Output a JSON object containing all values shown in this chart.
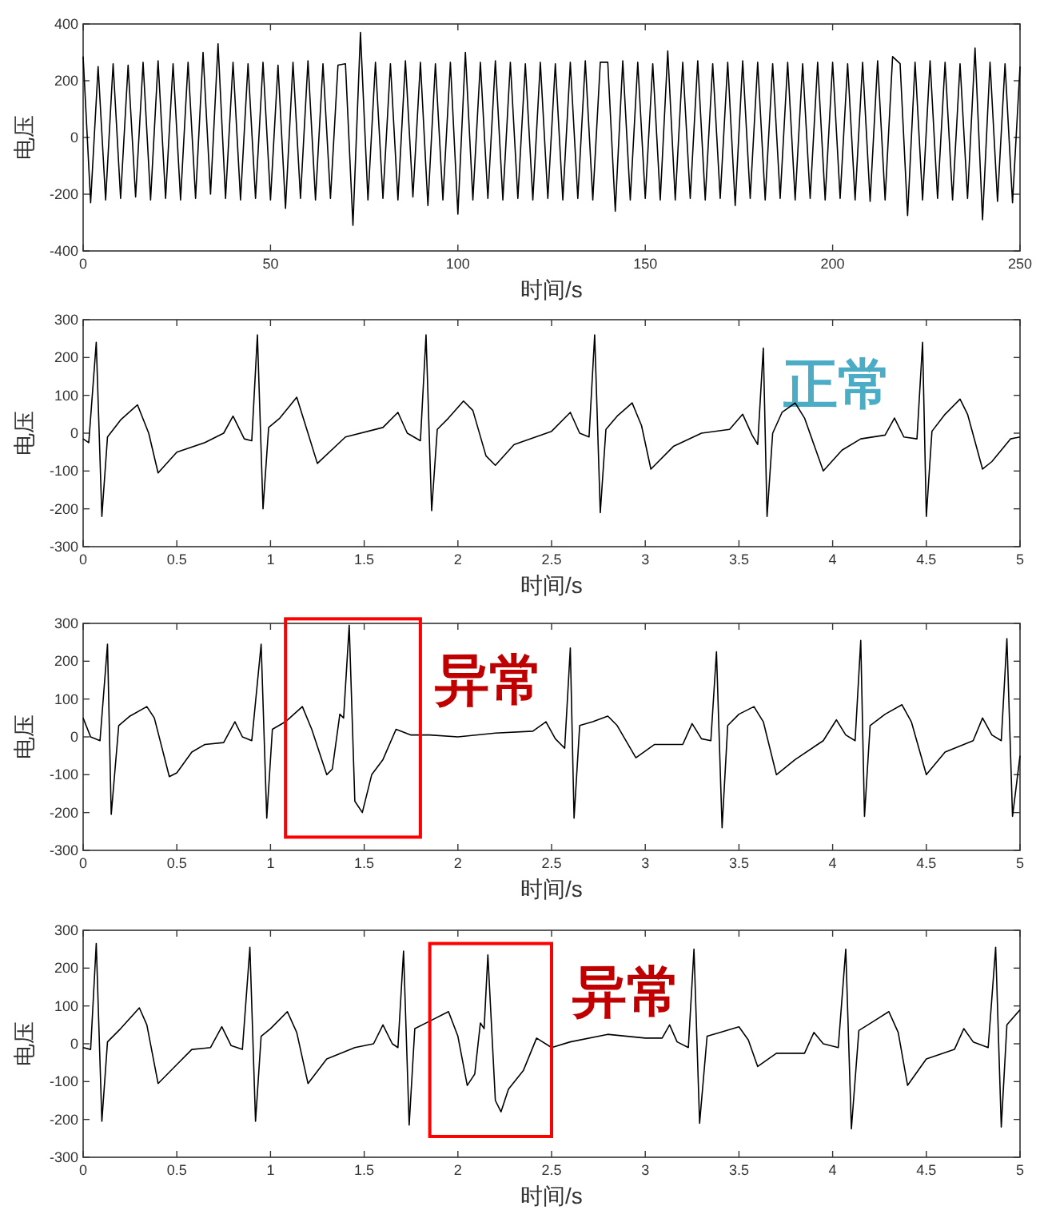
{
  "chart_data": [
    {
      "type": "line",
      "xlabel": "时间/s",
      "ylabel": "电压",
      "xlim": [
        0,
        250
      ],
      "xticks": [
        0,
        50,
        100,
        150,
        200,
        250
      ],
      "ylim": [
        -400,
        400
      ],
      "yticks": [
        -400,
        -200,
        0,
        200,
        400
      ],
      "grid": false,
      "marker": "none",
      "line_style": "solid",
      "x": [
        0,
        2,
        4,
        6,
        8,
        10,
        12,
        14,
        16,
        18,
        20,
        22,
        24,
        26,
        28,
        30,
        32,
        34,
        36,
        38,
        40,
        42,
        44,
        46,
        48,
        50,
        52,
        54,
        56,
        58,
        60,
        62,
        64,
        66,
        68,
        70,
        72,
        74,
        76,
        78,
        80,
        82,
        84,
        86,
        88,
        90,
        92,
        94,
        96,
        98,
        100,
        102,
        104,
        106,
        108,
        110,
        112,
        114,
        116,
        118,
        120,
        122,
        124,
        126,
        128,
        130,
        132,
        134,
        136,
        138,
        140,
        142,
        144,
        146,
        148,
        150,
        152,
        154,
        156,
        158,
        160,
        162,
        164,
        166,
        168,
        170,
        172,
        174,
        176,
        178,
        180,
        182,
        184,
        186,
        188,
        190,
        192,
        194,
        196,
        198,
        200,
        202,
        204,
        206,
        208,
        210,
        212,
        214,
        216,
        218,
        220,
        222,
        224,
        226,
        228,
        230,
        232,
        234,
        236,
        238,
        240,
        242,
        244,
        246,
        248,
        250
      ],
      "series": [
        {
          "color": "#000000",
          "values": [
            285,
            -230,
            250,
            -220,
            260,
            -215,
            255,
            -210,
            265,
            -220,
            270,
            -215,
            260,
            -220,
            265,
            -215,
            300,
            -200,
            330,
            -215,
            265,
            -220,
            260,
            -215,
            265,
            -220,
            255,
            -250,
            265,
            -215,
            270,
            -220,
            260,
            -215,
            255,
            260,
            -310,
            370,
            -220,
            265,
            -215,
            260,
            -220,
            270,
            -210,
            265,
            -240,
            260,
            -220,
            265,
            -270,
            300,
            -220,
            265,
            -215,
            270,
            -220,
            265,
            -215,
            260,
            -220,
            265,
            -215,
            260,
            -220,
            265,
            -215,
            270,
            -220,
            265,
            265,
            -260,
            270,
            -220,
            265,
            -215,
            260,
            -220,
            305,
            -220,
            265,
            -215,
            270,
            -220,
            260,
            -215,
            265,
            -240,
            270,
            -215,
            265,
            -220,
            260,
            -215,
            265,
            -220,
            260,
            -215,
            265,
            -220,
            265,
            -215,
            260,
            -220,
            265,
            -225,
            270,
            -220,
            285,
            260,
            -275,
            265,
            -220,
            270,
            -215,
            265,
            -220,
            260,
            -215,
            315,
            -290,
            265,
            -225,
            260,
            -230,
            250
          ]
        }
      ]
    },
    {
      "type": "line",
      "xlabel": "时间/s",
      "ylabel": "电压",
      "xlim": [
        0,
        5
      ],
      "xticks": [
        0,
        0.5,
        1,
        1.5,
        2,
        2.5,
        3,
        3.5,
        4,
        4.5,
        5
      ],
      "ylim": [
        -300,
        300
      ],
      "yticks": [
        -300,
        -200,
        -100,
        0,
        100,
        200,
        300
      ],
      "grid": false,
      "marker": "none",
      "line_style": "solid",
      "annotations": [
        "正常"
      ],
      "x": [
        0,
        0.03,
        0.07,
        0.1,
        0.13,
        0.2,
        0.29,
        0.35,
        0.4,
        0.5,
        0.65,
        0.75,
        0.8,
        0.86,
        0.9,
        0.93,
        0.96,
        0.99,
        1.05,
        1.14,
        1.2,
        1.25,
        1.4,
        1.6,
        1.68,
        1.73,
        1.8,
        1.83,
        1.86,
        1.89,
        1.95,
        2.03,
        2.08,
        2.15,
        2.2,
        2.3,
        2.5,
        2.6,
        2.65,
        2.7,
        2.73,
        2.76,
        2.79,
        2.85,
        2.93,
        2.98,
        3.03,
        3.15,
        3.3,
        3.45,
        3.52,
        3.57,
        3.6,
        3.63,
        3.65,
        3.68,
        3.73,
        3.8,
        3.85,
        3.95,
        4.05,
        4.15,
        4.28,
        4.33,
        4.38,
        4.45,
        4.48,
        4.5,
        4.53,
        4.6,
        4.68,
        4.72,
        4.8,
        4.85,
        4.95,
        5
      ],
      "series": [
        {
          "color": "#000000",
          "values": [
            -15,
            -25,
            240,
            -220,
            -10,
            35,
            75,
            0,
            -105,
            -50,
            -25,
            0,
            45,
            -15,
            -20,
            260,
            -200,
            15,
            40,
            95,
            0,
            -80,
            -10,
            15,
            55,
            0,
            -20,
            260,
            -205,
            10,
            40,
            85,
            60,
            -60,
            -85,
            -30,
            5,
            55,
            0,
            -10,
            260,
            -210,
            10,
            45,
            80,
            20,
            -95,
            -35,
            0,
            10,
            50,
            -5,
            -30,
            225,
            -220,
            0,
            55,
            80,
            40,
            -100,
            -45,
            -15,
            -5,
            40,
            -10,
            -15,
            240,
            -220,
            5,
            50,
            90,
            50,
            -95,
            -75,
            -15,
            -10
          ]
        }
      ]
    },
    {
      "type": "line",
      "xlabel": "时间/s",
      "ylabel": "电压",
      "xlim": [
        0,
        5
      ],
      "xticks": [
        0,
        0.5,
        1,
        1.5,
        2,
        2.5,
        3,
        3.5,
        4,
        4.5,
        5
      ],
      "ylim": [
        -300,
        300
      ],
      "yticks": [
        -300,
        -200,
        -100,
        0,
        100,
        200,
        300
      ],
      "grid": false,
      "marker": "none",
      "line_style": "solid",
      "annotations": [
        "异常"
      ],
      "x": [
        0,
        0.04,
        0.09,
        0.13,
        0.15,
        0.19,
        0.25,
        0.34,
        0.38,
        0.46,
        0.5,
        0.58,
        0.65,
        0.75,
        0.81,
        0.85,
        0.9,
        0.95,
        0.98,
        1.01,
        1.08,
        1.17,
        1.22,
        1.3,
        1.33,
        1.37,
        1.39,
        1.42,
        1.45,
        1.49,
        1.54,
        1.6,
        1.67,
        1.75,
        1.85,
        2,
        2.2,
        2.4,
        2.47,
        2.52,
        2.57,
        2.6,
        2.62,
        2.65,
        2.72,
        2.8,
        2.85,
        2.95,
        3.05,
        3.2,
        3.25,
        3.3,
        3.35,
        3.38,
        3.41,
        3.44,
        3.5,
        3.58,
        3.63,
        3.7,
        3.8,
        3.95,
        4.02,
        4.07,
        4.12,
        4.15,
        4.17,
        4.2,
        4.28,
        4.37,
        4.42,
        4.5,
        4.6,
        4.75,
        4.8,
        4.85,
        4.9,
        4.93,
        4.96,
        5
      ],
      "series": [
        {
          "color": "#000000",
          "values": [
            50,
            0,
            -10,
            245,
            -205,
            30,
            55,
            80,
            50,
            -105,
            -95,
            -40,
            -20,
            -15,
            40,
            0,
            -10,
            245,
            -215,
            20,
            40,
            80,
            20,
            -100,
            -85,
            60,
            50,
            295,
            -170,
            -200,
            -100,
            -60,
            20,
            5,
            5,
            0,
            10,
            15,
            40,
            -5,
            -30,
            235,
            -215,
            30,
            40,
            55,
            30,
            -55,
            -20,
            -20,
            35,
            -5,
            -10,
            225,
            -240,
            30,
            60,
            80,
            40,
            -100,
            -60,
            -10,
            45,
            5,
            -10,
            255,
            -210,
            30,
            60,
            85,
            40,
            -100,
            -40,
            -10,
            50,
            5,
            -10,
            260,
            -210,
            -50
          ]
        }
      ]
    },
    {
      "type": "line",
      "xlabel": "时间/s",
      "ylabel": "电压",
      "xlim": [
        0,
        5
      ],
      "xticks": [
        0,
        0.5,
        1,
        1.5,
        2,
        2.5,
        3,
        3.5,
        4,
        4.5,
        5
      ],
      "ylim": [
        -300,
        300
      ],
      "yticks": [
        -300,
        -200,
        -100,
        0,
        100,
        200,
        300
      ],
      "grid": false,
      "marker": "none",
      "line_style": "solid",
      "annotations": [
        "异常"
      ],
      "x": [
        0,
        0.04,
        0.07,
        0.1,
        0.13,
        0.2,
        0.3,
        0.34,
        0.4,
        0.5,
        0.58,
        0.68,
        0.74,
        0.79,
        0.85,
        0.89,
        0.92,
        0.95,
        1,
        1.09,
        1.14,
        1.2,
        1.3,
        1.45,
        1.55,
        1.6,
        1.65,
        1.68,
        1.71,
        1.74,
        1.77,
        1.85,
        1.95,
        2,
        2.05,
        2.09,
        2.12,
        2.14,
        2.16,
        2.2,
        2.23,
        2.27,
        2.35,
        2.42,
        2.5,
        2.6,
        2.8,
        3,
        3.09,
        3.13,
        3.17,
        3.23,
        3.26,
        3.29,
        3.33,
        3.4,
        3.5,
        3.55,
        3.6,
        3.7,
        3.85,
        3.9,
        3.95,
        4.03,
        4.07,
        4.1,
        4.14,
        4.22,
        4.3,
        4.35,
        4.4,
        4.5,
        4.65,
        4.7,
        4.75,
        4.83,
        4.87,
        4.9,
        4.93,
        5
      ],
      "series": [
        {
          "color": "#000000",
          "values": [
            -10,
            -15,
            265,
            -205,
            5,
            40,
            95,
            50,
            -105,
            -55,
            -15,
            -10,
            45,
            -5,
            -15,
            255,
            -205,
            20,
            40,
            85,
            30,
            -105,
            -40,
            -10,
            0,
            50,
            0,
            -10,
            245,
            -215,
            40,
            60,
            85,
            20,
            -110,
            -80,
            55,
            40,
            235,
            -150,
            -180,
            -120,
            -70,
            15,
            -10,
            5,
            25,
            15,
            15,
            50,
            5,
            -10,
            250,
            -210,
            20,
            30,
            45,
            10,
            -60,
            -25,
            -25,
            30,
            0,
            -10,
            250,
            -225,
            35,
            60,
            85,
            30,
            -110,
            -40,
            -15,
            40,
            5,
            -10,
            255,
            -220,
            50,
            90
          ]
        }
      ]
    }
  ]
}
